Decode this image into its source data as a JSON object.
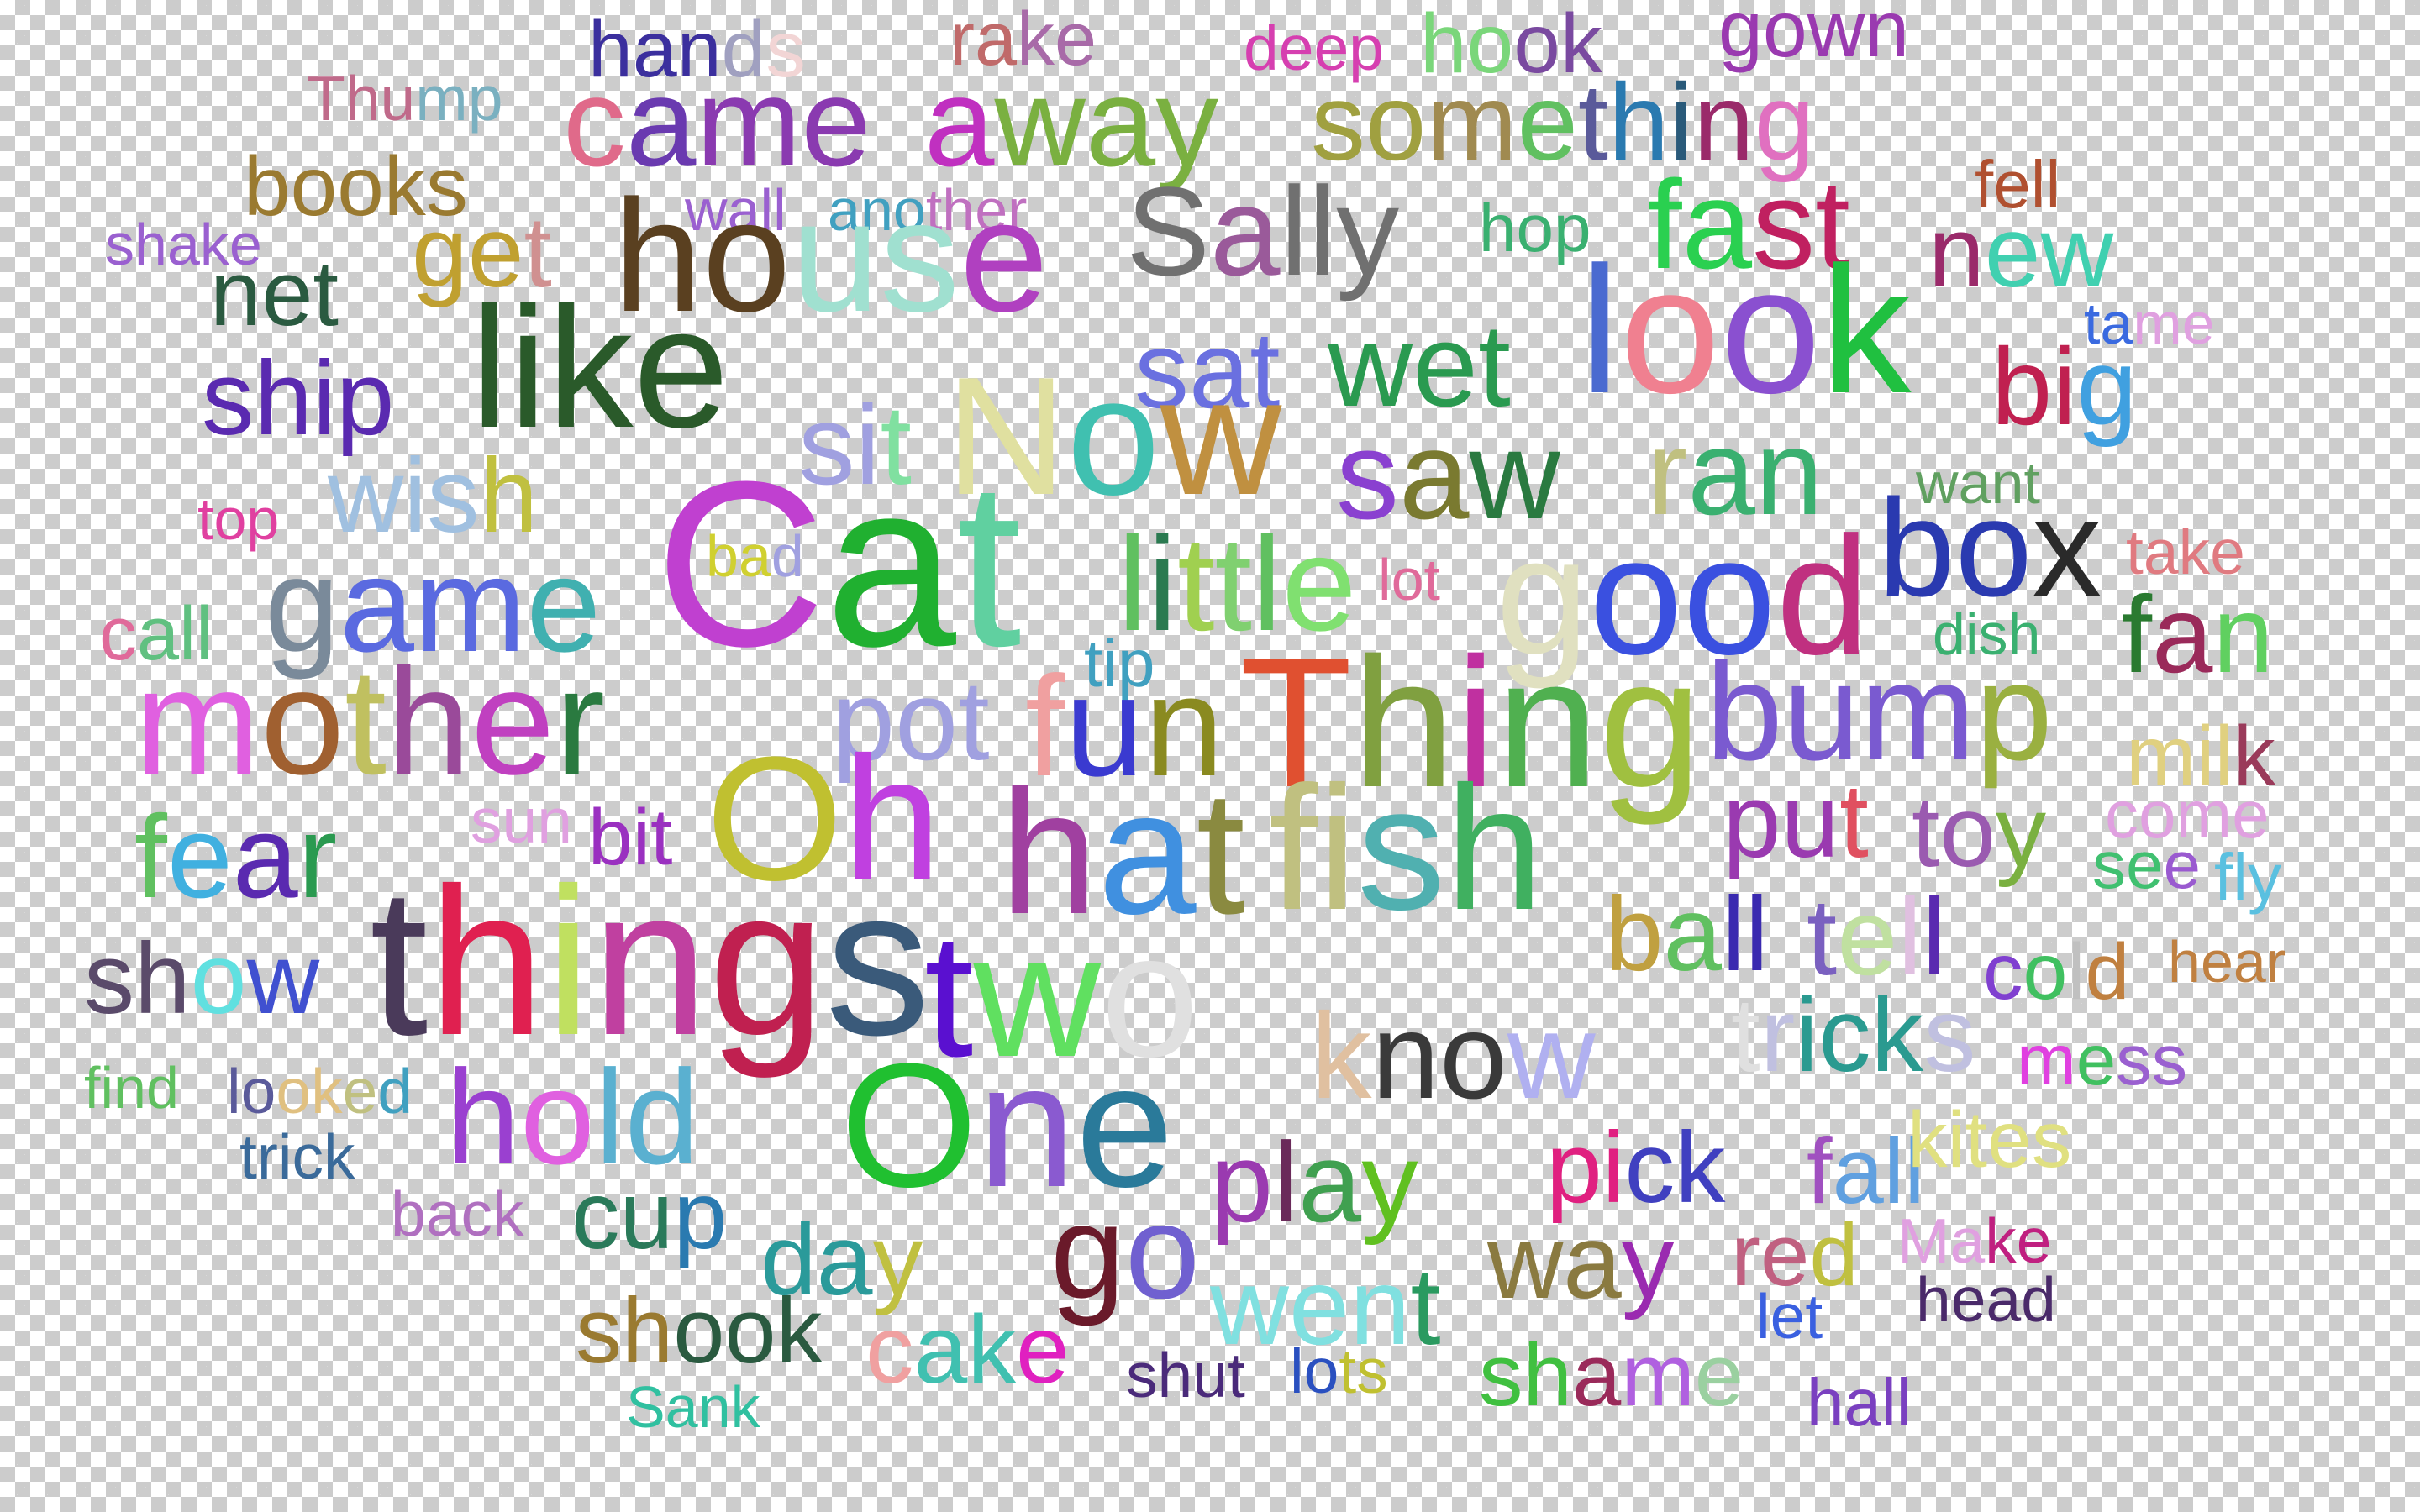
{
  "words": [
    {
      "text": "hands",
      "colors": [
        "#3b2f9e",
        "#3b2f9e",
        "#3b2f9e",
        "#a0a0c0",
        "#f2d5d5"
      ]
    },
    {
      "text": "rake",
      "colors": [
        "#c06a6a",
        "#c06a6a",
        "#a86aa8",
        "#a86aa8"
      ]
    },
    {
      "text": "deep",
      "colors": [
        "#d63fb0",
        "#d63fb0",
        "#d63fb0",
        "#d63fb0"
      ]
    },
    {
      "text": "hook",
      "colors": [
        "#7ad67a",
        "#7ad67a",
        "#7a4aa0",
        "#7a4aa0"
      ]
    },
    {
      "text": "gown",
      "colors": [
        "#9a3ab0",
        "#9a3ab0",
        "#9a3ab0",
        "#9a3ab0"
      ]
    },
    {
      "text": "Thump",
      "colors": [
        "#c06a8a",
        "#c06a8a",
        "#c06a8a",
        "#7ab0c0",
        "#7ab0c0"
      ]
    },
    {
      "text": "came",
      "colors": [
        "#e06a8a",
        "#6a3ab0",
        "#8a3ab0",
        "#8a3ab0"
      ]
    },
    {
      "text": "away",
      "colors": [
        "#c030c0",
        "#7ab040",
        "#7ab040",
        "#7ab040"
      ]
    },
    {
      "text": "something",
      "colors": [
        "#a0a040",
        "#a0a040",
        "#a08a50",
        "#60c060",
        "#5a5a9a",
        "#2a7ab0",
        "#2a5a7a",
        "#9a2a6a",
        "#e070c0"
      ]
    },
    {
      "text": "books",
      "colors": [
        "#9a7a30",
        "#9a7a30",
        "#9a7a30",
        "#9a7a30",
        "#9a7a30"
      ]
    },
    {
      "text": "wall",
      "colors": [
        "#9a60d0",
        "#9a60d0",
        "#9a60d0",
        "#9a60d0"
      ]
    },
    {
      "text": "another",
      "colors": [
        "#40a0c0",
        "#40a0c0",
        "#40a0c0",
        "#c070c0",
        "#c070c0",
        "#c070c0",
        "#c070c0"
      ]
    },
    {
      "text": "fell",
      "colors": [
        "#b05030",
        "#b05030",
        "#b05030",
        "#b05030"
      ]
    },
    {
      "text": "shake",
      "colors": [
        "#9a60d0",
        "#9a60d0",
        "#9a60d0",
        "#9a60d0",
        "#9a60d0"
      ]
    },
    {
      "text": "get",
      "colors": [
        "#c0a030",
        "#c0a030",
        "#d09090"
      ]
    },
    {
      "text": "house",
      "colors": [
        "#5a4020",
        "#5a4020",
        "#a0e0d0",
        "#a0e0d0",
        "#b040c0"
      ]
    },
    {
      "text": "Sally",
      "colors": [
        "#707070",
        "#9a5a9a",
        "#707070",
        "#707070",
        "#707070"
      ]
    },
    {
      "text": "hop",
      "colors": [
        "#3ab070",
        "#3ab070",
        "#3ab070"
      ]
    },
    {
      "text": "fast",
      "colors": [
        "#2ad050",
        "#2ad050",
        "#c02060",
        "#c02060"
      ]
    },
    {
      "text": "new",
      "colors": [
        "#9a2a6a",
        "#40d0b0",
        "#40d0b0"
      ]
    },
    {
      "text": "net",
      "colors": [
        "#2a5a40",
        "#2a5a40",
        "#2a5a40"
      ]
    },
    {
      "text": "tame",
      "colors": [
        "#3a6ae0",
        "#3a6ae0",
        "#e0a0e0",
        "#e0a0e0"
      ]
    },
    {
      "text": "like",
      "colors": [
        "#2a5a2a",
        "#2a5a2a",
        "#2a5a2a",
        "#2a5a2a"
      ]
    },
    {
      "text": "sat",
      "colors": [
        "#6a70e0",
        "#6a70e0",
        "#6a70e0"
      ]
    },
    {
      "text": "wet",
      "colors": [
        "#2a9a50",
        "#2a9a50",
        "#2a9a50"
      ]
    },
    {
      "text": "look",
      "colors": [
        "#4a6ad0",
        "#f08090",
        "#8a50d0",
        "#20c040"
      ]
    },
    {
      "text": "big",
      "colors": [
        "#c02050",
        "#c02050",
        "#40a0e0"
      ]
    },
    {
      "text": "ship",
      "colors": [
        "#5a2ab0",
        "#5a2ab0",
        "#5a2ab0",
        "#5a2ab0"
      ]
    },
    {
      "text": "sit",
      "colors": [
        "#a0a0e0",
        "#a0a0e0",
        "#80e0a0"
      ]
    },
    {
      "text": "Now",
      "colors": [
        "#e0e0a0",
        "#40c0b0",
        "#c09040"
      ]
    },
    {
      "text": "saw",
      "colors": [
        "#8a40d0",
        "#7a7a30",
        "#2a7a40"
      ]
    },
    {
      "text": "ran",
      "colors": [
        "#c0c080",
        "#3ab070",
        "#3ab070"
      ]
    },
    {
      "text": "want",
      "colors": [
        "#60a060",
        "#60a060",
        "#60a060",
        "#60a060"
      ]
    },
    {
      "text": "wish",
      "colors": [
        "#a0c0e0",
        "#a0c0e0",
        "#a0c0e0",
        "#c0c040"
      ]
    },
    {
      "text": "top",
      "colors": [
        "#e040a0",
        "#e040a0",
        "#e040a0"
      ]
    },
    {
      "text": "Cat",
      "colors": [
        "#c040d0",
        "#20b030",
        "#60d0a0"
      ]
    },
    {
      "text": "bad",
      "colors": [
        "#d0d030",
        "#d0d030",
        "#a0a0e0"
      ]
    },
    {
      "text": "little",
      "colors": [
        "#60c060",
        "#2a7a50",
        "#a0d050",
        "#80d070",
        "#60c060",
        "#80e070"
      ]
    },
    {
      "text": "lot",
      "colors": [
        "#e06a9a",
        "#e06a9a",
        "#e06a9a"
      ]
    },
    {
      "text": "good",
      "colors": [
        "#e0e0c0",
        "#3a50e0",
        "#3a50e0",
        "#c03080"
      ]
    },
    {
      "text": "box",
      "colors": [
        "#2a3ab0",
        "#2a3ab0",
        "#2a2a2a"
      ]
    },
    {
      "text": "take",
      "colors": [
        "#e07a80",
        "#e07a80",
        "#e07a80",
        "#e07a80"
      ]
    },
    {
      "text": "game",
      "colors": [
        "#7a8a9a",
        "#5a6ae0",
        "#5a6ae0",
        "#40b0b0"
      ]
    },
    {
      "text": "call",
      "colors": [
        "#e06a9a",
        "#60c080",
        "#60c080",
        "#60c080"
      ]
    },
    {
      "text": "dish",
      "colors": [
        "#3ab070",
        "#3ab070",
        "#3ab070",
        "#3ab070"
      ]
    },
    {
      "text": "fan",
      "colors": [
        "#2a7a30",
        "#9a2a5a",
        "#60d060"
      ]
    },
    {
      "text": "tip",
      "colors": [
        "#40a0c0",
        "#40a0c0",
        "#40a0c0"
      ]
    },
    {
      "text": "mother",
      "colors": [
        "#e060e0",
        "#a06030",
        "#c0c060",
        "#9a4a9a",
        "#c040c0",
        "#2a7a40"
      ]
    },
    {
      "text": "pot",
      "colors": [
        "#a0a0e0",
        "#a0a0e0",
        "#a0a0e0"
      ]
    },
    {
      "text": "fun",
      "colors": [
        "#f0a0a0",
        "#3a3ad0",
        "#8a8a20"
      ]
    },
    {
      "text": "Thing",
      "colors": [
        "#e05030",
        "#80a040",
        "#c030a0",
        "#50b050",
        "#a0c040"
      ]
    },
    {
      "text": "bump",
      "colors": [
        "#7a5ad0",
        "#7a5ad0",
        "#7a5ad0",
        "#9ab040"
      ]
    },
    {
      "text": "milk",
      "colors": [
        "#e0d080",
        "#e0d080",
        "#e0d080",
        "#9a3a5a"
      ]
    },
    {
      "text": "sun",
      "colors": [
        "#e0a0e0",
        "#e0a0e0",
        "#e0a0e0"
      ]
    },
    {
      "text": "bit",
      "colors": [
        "#9a30c0",
        "#9a30c0",
        "#9a30c0"
      ]
    },
    {
      "text": "Oh",
      "colors": [
        "#c0c030",
        "#c040e0"
      ]
    },
    {
      "text": "hat",
      "colors": [
        "#a040a0",
        "#4090e0",
        "#8a8a40"
      ]
    },
    {
      "text": "fish",
      "colors": [
        "#c0c080",
        "#c0c080",
        "#50b0b0",
        "#40b060"
      ]
    },
    {
      "text": "put",
      "colors": [
        "#9a3ab0",
        "#9a3ab0",
        "#e05060"
      ]
    },
    {
      "text": "toy",
      "colors": [
        "#9a5ab0",
        "#9a5ab0",
        "#7ab040"
      ]
    },
    {
      "text": "come",
      "colors": [
        "#e0a0e0",
        "#e0a0e0",
        "#e0a0e0",
        "#e0a0e0"
      ]
    },
    {
      "text": "fear",
      "colors": [
        "#60c060",
        "#40b0e0",
        "#5a2ab0",
        "#2a9a50"
      ]
    },
    {
      "text": "see",
      "colors": [
        "#40c070",
        "#40c070",
        "#9a5ad0"
      ]
    },
    {
      "text": "fly",
      "colors": [
        "#5ac0e0",
        "#5ac0e0",
        "#5ac0e0"
      ]
    },
    {
      "text": "things",
      "colors": [
        "#4a3a5a",
        "#e02050",
        "#c0e060",
        "#c040a0",
        "#c02050",
        "#3a5a7a"
      ]
    },
    {
      "text": "ball",
      "colors": [
        "#c0a040",
        "#60c060",
        "#3a2ab0",
        "#3a2ab0"
      ]
    },
    {
      "text": "tell",
      "colors": [
        "#7a60c0",
        "#c0e0a0",
        "#e0c0e0",
        "#5a2ab0"
      ]
    },
    {
      "text": "cold",
      "colors": [
        "#8040d0",
        "#40c060",
        "#c0c0c0",
        "#c08040"
      ]
    },
    {
      "text": "hear",
      "colors": [
        "#c08040",
        "#c08040",
        "#c08040",
        "#c08040"
      ]
    },
    {
      "text": "show",
      "colors": [
        "#5a4a6a",
        "#5a4a6a",
        "#60e0e0",
        "#4050d0"
      ]
    },
    {
      "text": "two",
      "colors": [
        "#5a10d0",
        "#60e060",
        "#e0e0e0"
      ]
    },
    {
      "text": "know",
      "colors": [
        "#e0c0a0",
        "#3a3a3a",
        "#3a3a3a",
        "#b0b0f0"
      ]
    },
    {
      "text": "tricks",
      "colors": [
        "#e0e0e0",
        "#c0c0e0",
        "#2a9a90",
        "#2a9a90",
        "#2a9a90",
        "#c0c0e0"
      ]
    },
    {
      "text": "mess",
      "colors": [
        "#e040e0",
        "#40c060",
        "#9a60d0",
        "#9a60d0"
      ]
    },
    {
      "text": "find",
      "colors": [
        "#60c060",
        "#60c060",
        "#60c060",
        "#60c060"
      ]
    },
    {
      "text": "looked",
      "colors": [
        "#5a5a9a",
        "#5a5a9a",
        "#e0c080",
        "#e0c080",
        "#c0c080",
        "#40a0c0"
      ]
    },
    {
      "text": "hold",
      "colors": [
        "#9a40d0",
        "#e060e0",
        "#5ab0d0",
        "#5ab0d0"
      ]
    },
    {
      "text": "One",
      "colors": [
        "#20c030",
        "#8a5ad0",
        "#2a7a9a"
      ]
    },
    {
      "text": "play",
      "colors": [
        "#9a3ab0",
        "#6a2a5a",
        "#40a050",
        "#60c020"
      ]
    },
    {
      "text": "pick",
      "colors": [
        "#e02080",
        "#e02080",
        "#4040c0",
        "#4040c0"
      ]
    },
    {
      "text": "fall",
      "colors": [
        "#a050c0",
        "#60a0e0",
        "#60a0e0",
        "#60a0e0"
      ]
    },
    {
      "text": "kites",
      "colors": [
        "#e0e080",
        "#e0e080",
        "#e0e080",
        "#e0e080",
        "#e0e080"
      ]
    },
    {
      "text": "trick",
      "colors": [
        "#3a6a9a",
        "#3a6a9a",
        "#3a6a9a",
        "#3a6a9a",
        "#3a6a9a"
      ]
    },
    {
      "text": "back",
      "colors": [
        "#b070c0",
        "#b070c0",
        "#b070c0",
        "#b070c0"
      ]
    },
    {
      "text": "cup",
      "colors": [
        "#2a7a5a",
        "#2a7a5a",
        "#2a7ab0"
      ]
    },
    {
      "text": "day",
      "colors": [
        "#2a9a9a",
        "#2a9a9a",
        "#c0c040"
      ]
    },
    {
      "text": "go",
      "colors": [
        "#6a1a2a",
        "#7060d0"
      ]
    },
    {
      "text": "went",
      "colors": [
        "#80e0e0",
        "#80e0e0",
        "#80e0e0",
        "#2a9a60"
      ]
    },
    {
      "text": "way",
      "colors": [
        "#8a7a40",
        "#8a7a40",
        "#9a2ab0"
      ]
    },
    {
      "text": "red",
      "colors": [
        "#c06080",
        "#c06080",
        "#c0c040"
      ]
    },
    {
      "text": "Make",
      "colors": [
        "#e0a0e0",
        "#e0a0e0",
        "#c02080",
        "#c02080"
      ]
    },
    {
      "text": "let",
      "colors": [
        "#3a60e0",
        "#3a60e0",
        "#3a60e0"
      ]
    },
    {
      "text": "head",
      "colors": [
        "#4a2a6a",
        "#4a2a6a",
        "#4a2a6a",
        "#4a2a6a"
      ]
    },
    {
      "text": "shook",
      "colors": [
        "#9a7a30",
        "#9a7a30",
        "#2a5a40",
        "#2a5a40",
        "#2a5a40"
      ]
    },
    {
      "text": "cake",
      "colors": [
        "#f0a0a0",
        "#40c0b0",
        "#40c0b0",
        "#e020c0"
      ]
    },
    {
      "text": "shut",
      "colors": [
        "#4a2a7a",
        "#4a2a7a",
        "#4a2a7a",
        "#4a2a7a"
      ]
    },
    {
      "text": "lots",
      "colors": [
        "#2a50c0",
        "#2a50c0",
        "#c0c030",
        "#c0c030"
      ]
    },
    {
      "text": "shame",
      "colors": [
        "#40c040",
        "#40c040",
        "#9a2a5a",
        "#b060e0",
        "#9ad0a0"
      ]
    },
    {
      "text": "hall",
      "colors": [
        "#7a40c0",
        "#7a40c0",
        "#7a40c0",
        "#7a40c0"
      ]
    },
    {
      "text": "Sank",
      "colors": [
        "#30c0a0",
        "#30c0a0",
        "#30c0a0",
        "#30c0a0"
      ]
    }
  ]
}
